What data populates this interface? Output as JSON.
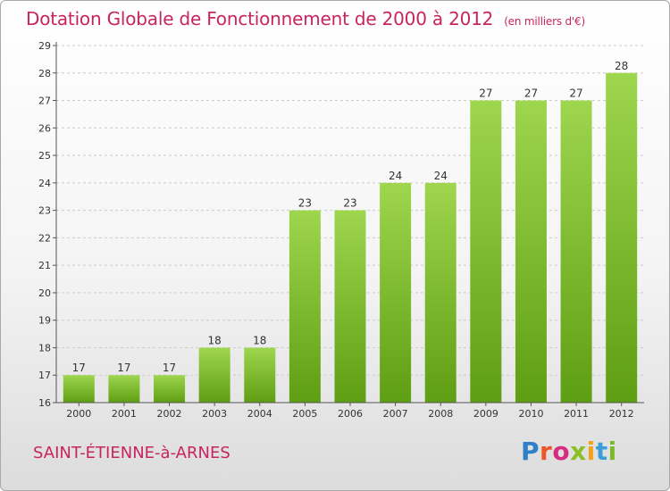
{
  "header": {
    "title": "Dotation Globale de Fonctionnement de 2000 à 2012",
    "unit": "(en milliers d'€)"
  },
  "footer": {
    "commune": "SAINT-ÉTIENNE-à-ARNES",
    "logo": [
      "P",
      "r",
      "o",
      "x",
      "i",
      "t",
      "i"
    ]
  },
  "colors": {
    "title": "#c8245f",
    "bar_top": "#9ed64e",
    "bar_bottom": "#5e9e12",
    "gridline": "#cccccc",
    "axis": "#555555"
  },
  "chart_data": {
    "type": "bar",
    "categories": [
      "2000",
      "2001",
      "2002",
      "2003",
      "2004",
      "2005",
      "2006",
      "2007",
      "2008",
      "2009",
      "2010",
      "2011",
      "2012"
    ],
    "values": [
      17,
      17,
      17,
      18,
      18,
      23,
      23,
      24,
      24,
      27,
      27,
      27,
      28
    ],
    "ylim": [
      16,
      29
    ],
    "yticks": [
      16,
      17,
      18,
      19,
      20,
      21,
      22,
      23,
      24,
      25,
      26,
      27,
      28,
      29
    ],
    "data_labels": true,
    "grid": "horizontal-dashed"
  }
}
